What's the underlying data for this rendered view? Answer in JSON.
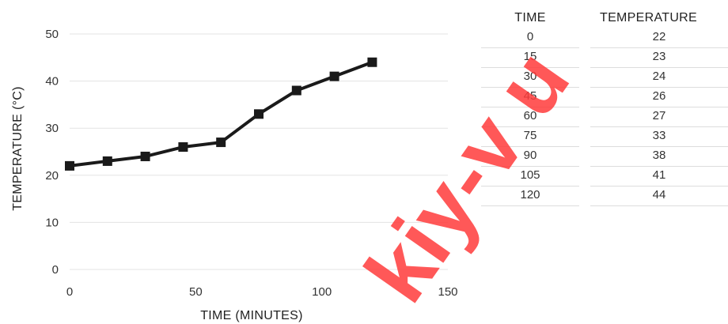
{
  "chart_data": {
    "type": "line",
    "xlabel": "TIME (MINUTES)",
    "ylabel": "TEMPERATURE (°C)",
    "xlim": [
      0,
      150
    ],
    "ylim": [
      0,
      50
    ],
    "xticks": [
      0,
      50,
      100,
      150
    ],
    "yticks": [
      0,
      10,
      20,
      30,
      40,
      50
    ],
    "grid": true,
    "x": [
      0,
      15,
      30,
      45,
      60,
      75,
      90,
      105,
      120
    ],
    "series": [
      {
        "values": [
          22,
          23,
          24,
          26,
          27,
          33,
          38,
          41,
          44
        ],
        "color": "#1a1a1a",
        "marker": "square"
      }
    ]
  },
  "table": {
    "headers": [
      "TIME",
      "TEMPERATURE"
    ],
    "rows": [
      [
        "0",
        "22"
      ],
      [
        "15",
        "23"
      ],
      [
        "30",
        "24"
      ],
      [
        "45",
        "26"
      ],
      [
        "60",
        "27"
      ],
      [
        "75",
        "33"
      ],
      [
        "90",
        "38"
      ],
      [
        "105",
        "41"
      ],
      [
        "120",
        "44"
      ]
    ]
  },
  "watermark": {
    "text": "kiy-v u",
    "color": "#ff3b3b"
  }
}
